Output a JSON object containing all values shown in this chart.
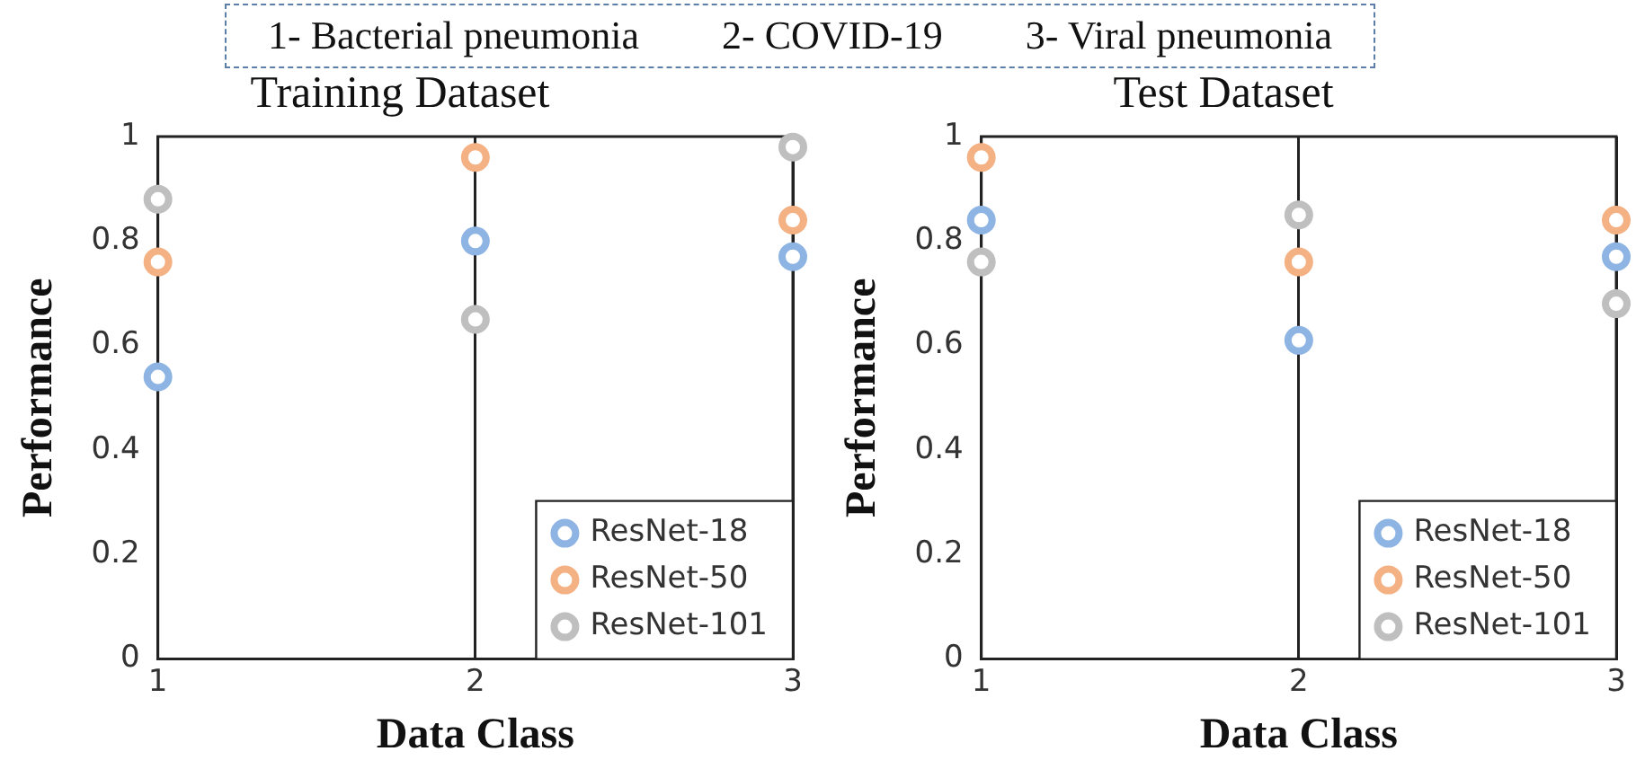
{
  "chart_data": [
    {
      "type": "scatter",
      "title": "Training Dataset",
      "xlabel": "Data Class",
      "ylabel": "Performance",
      "annotations": [
        "1- Bacterial pneumonia",
        "2- COVID-19",
        "3- Viral pneumonia"
      ],
      "x": [
        1,
        2,
        3
      ],
      "xlim": [
        1,
        3
      ],
      "xticks": [
        1,
        2,
        3
      ],
      "ylim": [
        0,
        1
      ],
      "yticks": [
        0,
        0.2,
        0.4,
        0.6,
        0.8,
        1
      ],
      "grid": "x",
      "legend": "bottom right",
      "marker": "circle",
      "series": [
        {
          "name": "ResNet-18",
          "color": "#8eb4e3",
          "values": [
            0.54,
            0.8,
            0.77
          ]
        },
        {
          "name": "ResNet-50",
          "color": "#f4b183",
          "values": [
            0.76,
            0.96,
            0.84
          ]
        },
        {
          "name": "ResNet-101",
          "color": "#bfbfbf",
          "values": [
            0.88,
            0.65,
            0.98
          ]
        }
      ]
    },
    {
      "type": "scatter",
      "title": "Test Dataset",
      "xlabel": "Data Class",
      "ylabel": "Performance",
      "x": [
        1,
        2,
        3
      ],
      "xlim": [
        1,
        3
      ],
      "xticks": [
        1,
        2,
        3
      ],
      "ylim": [
        0,
        1
      ],
      "yticks": [
        0,
        0.2,
        0.4,
        0.6,
        0.8,
        1
      ],
      "grid": "x",
      "legend": "bottom right",
      "marker": "circle",
      "series": [
        {
          "name": "ResNet-18",
          "color": "#8eb4e3",
          "values": [
            0.84,
            0.61,
            0.77
          ]
        },
        {
          "name": "ResNet-50",
          "color": "#f4b183",
          "values": [
            0.96,
            0.76,
            0.84
          ]
        },
        {
          "name": "ResNet-101",
          "color": "#bfbfbf",
          "values": [
            0.76,
            0.85,
            0.68
          ]
        }
      ]
    }
  ]
}
